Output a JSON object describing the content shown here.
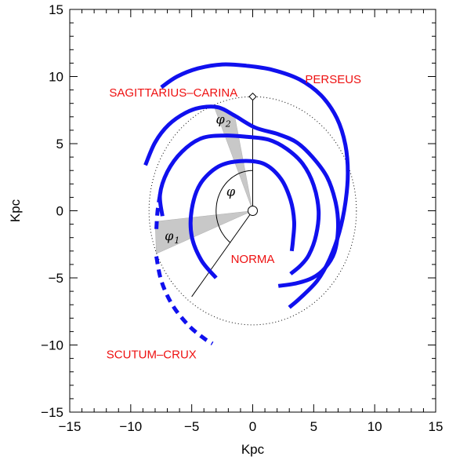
{
  "chart_data": {
    "type": "line",
    "title": "",
    "xlabel": "Kpc",
    "ylabel": "Kpc",
    "xlim": [
      -15,
      15
    ],
    "ylim": [
      -15,
      15
    ],
    "xticks": [
      "-15",
      "-10",
      "-5",
      "0",
      "5",
      "10",
      "15"
    ],
    "yticks": [
      "15",
      "10",
      "5",
      "0",
      "-5",
      "-10",
      "-15"
    ],
    "grid": false,
    "colors": {
      "arm": "#1010ee",
      "label": "#ee1111",
      "wedge": "#c8c8c8",
      "axes": "#000000"
    },
    "sun": {
      "x": 0,
      "y": 8.5
    },
    "galactic_center": {
      "x": 0,
      "y": 0
    },
    "solar_circle_radius": 8.5,
    "phi_line_end": {
      "x": -5.0,
      "y": -6.4
    },
    "series": [
      {
        "points": [
          [
            -8.8,
            3.4
          ],
          [
            -8.0,
            5.1
          ],
          [
            -6.9,
            6.4
          ],
          [
            -5.5,
            7.3
          ],
          [
            -4.2,
            7.7
          ],
          [
            -2.8,
            7.7
          ],
          [
            -1.5,
            7.1
          ],
          [
            0.2,
            6.2
          ],
          [
            2.1,
            5.7
          ],
          [
            3.6,
            5.1
          ],
          [
            4.9,
            4.0
          ],
          [
            6.1,
            2.5
          ],
          [
            6.8,
            0.6
          ],
          [
            7.0,
            -1.2
          ],
          [
            6.7,
            -3.1
          ],
          [
            5.9,
            -4.3
          ],
          [
            4.9,
            -5.0
          ],
          [
            3.6,
            -5.4
          ],
          [
            2.1,
            -5.6
          ]
        ]
      },
      {
        "points": [
          [
            -7.5,
            9.2
          ],
          [
            -6.2,
            10.0
          ],
          [
            -4.5,
            10.6
          ],
          [
            -2.5,
            10.9
          ],
          [
            -0.5,
            10.8
          ],
          [
            1.6,
            10.5
          ],
          [
            3.8,
            9.8
          ],
          [
            5.6,
            8.6
          ],
          [
            6.9,
            6.9
          ],
          [
            7.6,
            4.9
          ],
          [
            7.8,
            2.8
          ],
          [
            7.6,
            0.6
          ],
          [
            7.1,
            -1.6
          ],
          [
            6.3,
            -3.6
          ],
          [
            5.3,
            -5.2
          ],
          [
            3.9,
            -6.5
          ],
          [
            3.0,
            -7.2
          ]
        ]
      },
      {
        "points": [
          [
            -7.4,
            -0.4
          ],
          [
            -7.6,
            1.2
          ],
          [
            -7.0,
            2.9
          ],
          [
            -5.8,
            4.4
          ],
          [
            -4.2,
            5.4
          ],
          [
            -2.3,
            5.6
          ],
          [
            -0.4,
            5.5
          ],
          [
            1.3,
            5.3
          ],
          [
            2.8,
            4.6
          ],
          [
            4.1,
            3.5
          ],
          [
            5.0,
            1.9
          ],
          [
            5.4,
            0.0
          ],
          [
            5.2,
            -1.8
          ],
          [
            4.6,
            -3.3
          ],
          [
            3.9,
            -4.1
          ],
          [
            3.1,
            -4.7
          ]
        ]
      },
      {
        "points": [
          [
            -3.0,
            -5.0
          ],
          [
            -4.2,
            -3.7
          ],
          [
            -5.0,
            -1.9
          ],
          [
            -5.0,
            0.1
          ],
          [
            -4.3,
            2.0
          ],
          [
            -2.8,
            3.3
          ],
          [
            -1.0,
            3.7
          ],
          [
            0.9,
            3.5
          ],
          [
            2.3,
            2.4
          ],
          [
            3.1,
            0.8
          ],
          [
            3.4,
            -0.8
          ],
          [
            3.3,
            -2.2
          ],
          [
            3.2,
            -3.0
          ]
        ]
      }
    ],
    "dashed_series": [
      {
        "points": [
          [
            -7.6,
            1.2
          ],
          [
            -7.8,
            0.0
          ],
          [
            -7.9,
            -1.4
          ]
        ]
      },
      {
        "points": [
          [
            -7.9,
            -3.4
          ],
          [
            -7.5,
            -5.2
          ],
          [
            -6.6,
            -7.0
          ],
          [
            -5.3,
            -8.5
          ],
          [
            -4.0,
            -9.5
          ],
          [
            -3.3,
            -9.9
          ]
        ]
      }
    ],
    "wedges": [
      {
        "vertices": [
          [
            0,
            0
          ],
          [
            -3.1,
            7.6
          ],
          [
            -1.5,
            7.2
          ]
        ]
      },
      {
        "vertices": [
          [
            0,
            0
          ],
          [
            -8.0,
            -0.8
          ],
          [
            -7.9,
            -3.2
          ]
        ]
      }
    ],
    "annotations": [
      {
        "text": "SAGITTARIUS–CARINA",
        "x": -6.5,
        "y": 8.5
      },
      {
        "text": "PERSEUS",
        "x": 6.6,
        "y": 9.5
      },
      {
        "text": "NORMA",
        "x": 0.0,
        "y": -3.9
      },
      {
        "text": "SCUTUM–CRUX",
        "x": -8.3,
        "y": -11.0
      }
    ],
    "phi_labels": [
      {
        "symbol": "φ",
        "sub": "",
        "x": -1.8,
        "y": 1.1
      },
      {
        "symbol": "φ",
        "sub": "2",
        "x": -2.4,
        "y": 6.5
      },
      {
        "symbol": "φ",
        "sub": "1",
        "x": -6.6,
        "y": -2.2
      }
    ]
  }
}
